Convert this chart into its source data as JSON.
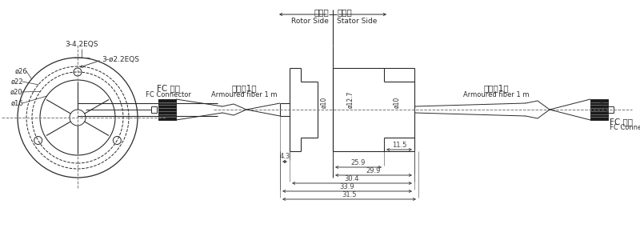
{
  "bg_color": "#ffffff",
  "line_color": "#2a2a2a",
  "dim_color": "#444444",
  "dash_color": "#777777",
  "gray_color": "#999999",
  "rotor_label_cn": "转子边",
  "rotor_label_en": "Rotor Side",
  "stator_label_cn": "定子边",
  "stator_label_en": "Stator Side",
  "fc_left_cn": "FC 接头",
  "fc_left_en": "FC Connector",
  "fiber_left_cn": "光纤线1米",
  "fiber_left_en": "Armoured fiber 1 m",
  "fiber_right_cn": "光纤线1米",
  "fiber_right_en": "Armoured fiber 1 m",
  "fc_right_cn": "FC 接头",
  "fc_right_en": "FC Connector",
  "d_bolt": "3-4.2EQS",
  "d_hole": "3-ø2.2EQS",
  "d26": "ø26",
  "d22": "ø22",
  "d20": "ø20",
  "d16": "ø16",
  "dim_phi10_l": "ø10",
  "dim_phi12_7": "ø12.7",
  "dim_phi10_r": "ø10",
  "dim_4_3": "4.3",
  "dim_11_5": "11.5",
  "dim_25_9": "25.9",
  "dim_29_9": "29.9",
  "dim_30_4": "30.4",
  "dim_33_9": "33.9",
  "dim_31_5": "31.5"
}
